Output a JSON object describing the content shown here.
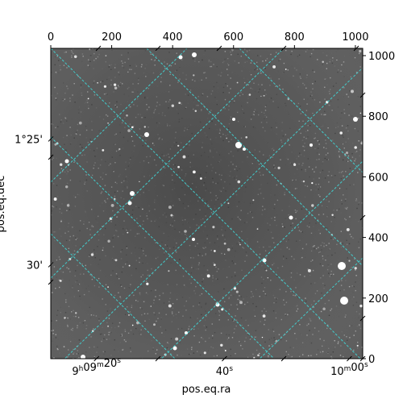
{
  "chart_data": {
    "type": "image",
    "xlabel": "pos.eq.ra",
    "ylabel": "pos.eq.dec",
    "pixel_axes": {
      "x_ticks": [
        0,
        200,
        400,
        600,
        800,
        1000
      ],
      "y_ticks": [
        0,
        200,
        400,
        600,
        800,
        1000
      ],
      "xlim": [
        0,
        1024
      ],
      "ylim": [
        0,
        1024
      ]
    },
    "world_axes": {
      "ra_ticks": [
        {
          "label": "9h09m20s",
          "x_pix": 150
        },
        {
          "label": "40s",
          "x_pix": 570
        },
        {
          "label": "10m00s",
          "x_pix": 980
        }
      ],
      "dec_ticks": [
        {
          "label": "1°25'",
          "y_pix": 725
        },
        {
          "label": "30'",
          "y_pix": 310
        }
      ]
    },
    "grid": true,
    "grid_color": "#40d8d8",
    "image_colormap": "gray",
    "background_color": "#5c5c5c"
  }
}
